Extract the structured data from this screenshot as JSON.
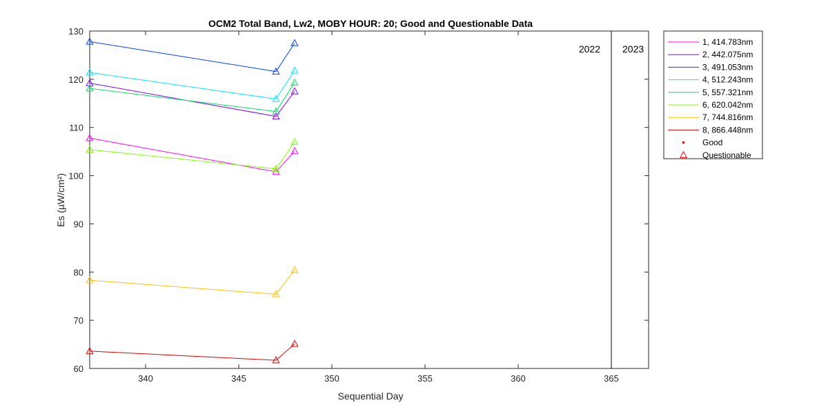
{
  "chart_data": {
    "type": "line",
    "title": "OCM2 Total Band,  Lw2, MOBY HOUR: 20;  Good and Questionable Data",
    "xlabel": "Sequential Day",
    "ylabel": "Es (µW/cm²)",
    "xlim": [
      337,
      367
    ],
    "ylim": [
      60,
      130
    ],
    "xticks": [
      340,
      345,
      350,
      355,
      360,
      365
    ],
    "yticks": [
      60,
      70,
      80,
      90,
      100,
      110,
      120,
      130
    ],
    "x": [
      337,
      347,
      348
    ],
    "series": [
      {
        "name": "1, 414.783nm",
        "color": "#ff00ff",
        "values": [
          107.8,
          100.8,
          105.1
        ]
      },
      {
        "name": "2, 442.075nm",
        "color": "#8000ff",
        "values": [
          119.2,
          112.3,
          117.5
        ]
      },
      {
        "name": "3, 491.053nm",
        "color": "#0040ff",
        "values": [
          127.8,
          121.6,
          127.5
        ]
      },
      {
        "name": "4, 512.243nm",
        "color": "#00e8ff",
        "values": [
          121.4,
          115.9,
          121.8
        ]
      },
      {
        "name": "5, 557.321nm",
        "color": "#00e060",
        "values": [
          118.1,
          113.3,
          119.3
        ]
      },
      {
        "name": "6, 620.042nm",
        "color": "#80ff00",
        "values": [
          105.4,
          101.4,
          107.0
        ]
      },
      {
        "name": "7, 744.816nm",
        "color": "#ffc000",
        "values": [
          78.3,
          75.4,
          80.4
        ]
      },
      {
        "name": "8, 866.448nm",
        "color": "#e00000",
        "values": [
          63.6,
          61.7,
          65.1
        ]
      }
    ],
    "markers_legend": [
      {
        "name": "Good",
        "symbol": "dot",
        "color": "#ff0000"
      },
      {
        "name": "Questionable",
        "symbol": "triangle",
        "color": "#ff0000"
      }
    ],
    "year_divider_x": 365,
    "year_labels": [
      "2022",
      "2023"
    ],
    "legend_position": "outside-right",
    "grid": false
  }
}
